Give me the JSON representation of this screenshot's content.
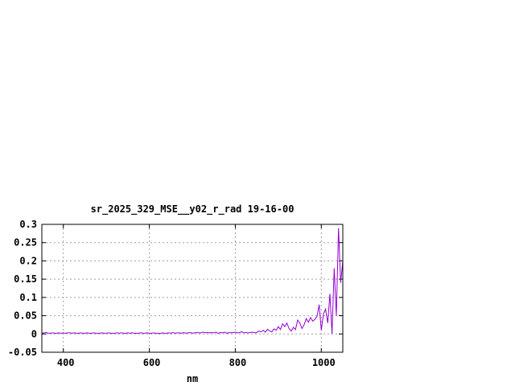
{
  "chart_data": {
    "type": "line",
    "title": "sr_2025_329_MSE__y02_r_rad 19-16-00",
    "xlabel": "nm",
    "ylabel": "",
    "xlim": [
      350,
      1050
    ],
    "ylim": [
      -0.05,
      0.3
    ],
    "xticks": [
      400,
      600,
      800,
      1000
    ],
    "yticks": [
      -0.05,
      0,
      0.05,
      0.1,
      0.15,
      0.2,
      0.25,
      0.3
    ],
    "ytick_labels": [
      "-0.05",
      "0",
      "0.05",
      "0.1",
      "0.15",
      "0.2",
      "0.25",
      "0.3"
    ],
    "grid": true,
    "line_color": "#9400d3",
    "x_start": 350,
    "x_step": 5,
    "values": [
      0.002,
      0.003,
      0.004,
      0.002,
      0.002,
      0.003,
      0.002,
      0.002,
      0.003,
      0.002,
      0.003,
      0.002,
      0.003,
      0.003,
      0.002,
      0.003,
      0.002,
      0.002,
      0.003,
      0.002,
      0.002,
      0.003,
      0.002,
      0.002,
      0.003,
      0.002,
      0.002,
      0.002,
      0.003,
      0.002,
      0.002,
      0.003,
      0.002,
      0.002,
      0.002,
      0.003,
      0.002,
      0.003,
      0.002,
      0.002,
      0.003,
      0.002,
      0.003,
      0.002,
      0.002,
      0.002,
      0.003,
      0.002,
      0.002,
      0.003,
      0.002,
      0.002,
      0.003,
      0.002,
      0.002,
      0.001,
      0.003,
      0.002,
      0.002,
      0.003,
      0.002,
      0.004,
      0.002,
      0.003,
      0.003,
      0.002,
      0.004,
      0.002,
      0.003,
      0.004,
      0.002,
      0.003,
      0.004,
      0.003,
      0.003,
      0.005,
      0.003,
      0.004,
      0.003,
      0.004,
      0.003,
      0.005,
      0.002,
      0.004,
      0.003,
      0.005,
      0.002,
      0.004,
      0.003,
      0.004,
      0.005,
      0.003,
      0.004,
      0.006,
      0.003,
      0.004,
      0.003,
      0.004,
      0.005,
      0.003,
      0.004,
      0.008,
      0.006,
      0.01,
      0.005,
      0.013,
      0.008,
      0.006,
      0.014,
      0.01,
      0.02,
      0.012,
      0.028,
      0.02,
      0.03,
      0.015,
      0.008,
      0.018,
      0.012,
      0.038,
      0.03,
      0.015,
      0.025,
      0.042,
      0.032,
      0.045,
      0.035,
      0.04,
      0.048,
      0.08,
      0.01,
      0.055,
      0.068,
      0.03,
      0.11,
      0.0,
      0.18,
      0.05,
      0.29,
      0.14,
      0.2
    ]
  }
}
